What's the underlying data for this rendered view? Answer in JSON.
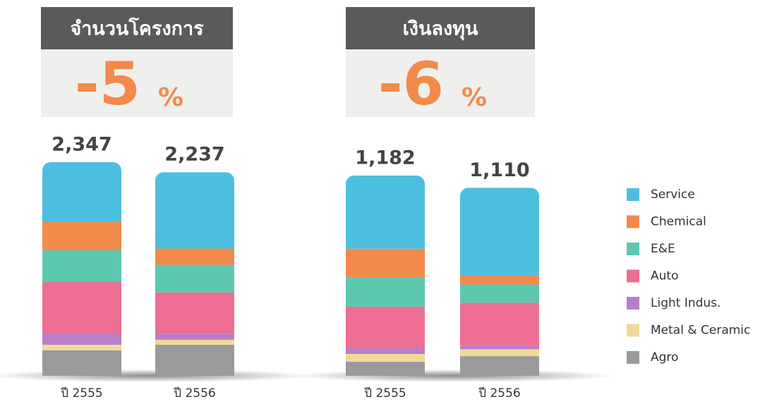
{
  "chart_data": [
    {
      "type": "bar",
      "stacked": true,
      "title": "จำนวนโครงการ",
      "change": "-5",
      "change_unit": "%",
      "categories": [
        "ปี 2555",
        "ปี 2556"
      ],
      "totals": [
        2347,
        2237
      ],
      "total_labels": [
        "2,347",
        "2,237"
      ],
      "series": [
        {
          "name": "Agro",
          "color": "#9a9a9a",
          "values": [
            279,
            342
          ]
        },
        {
          "name": "Metal & Ceramic",
          "color": "#f2d89a",
          "values": [
            62,
            54
          ]
        },
        {
          "name": "Light Indus.",
          "color": "#b77fc7",
          "values": [
            116,
            62
          ]
        },
        {
          "name": "Auto",
          "color": "#ee6e93",
          "values": [
            573,
            458
          ]
        },
        {
          "name": "E&E",
          "color": "#5cc8b0",
          "values": [
            349,
            303
          ]
        },
        {
          "name": "Chemical",
          "color": "#f28a4b",
          "values": [
            310,
            179
          ]
        },
        {
          "name": "Service",
          "color": "#4dbfde",
          "values": [
            658,
            839
          ]
        }
      ]
    },
    {
      "type": "bar",
      "stacked": true,
      "title": "เงินลงทุน",
      "change": "-6",
      "change_unit": "%",
      "categories": [
        "ปี 2555",
        "ปี 2556"
      ],
      "totals": [
        1182,
        1110
      ],
      "total_labels": [
        "1,182",
        "1,110"
      ],
      "series": [
        {
          "name": "Agro",
          "color": "#9a9a9a",
          "values": [
            83,
            116
          ]
        },
        {
          "name": "Metal & Ceramic",
          "color": "#f2d89a",
          "values": [
            46,
            41
          ]
        },
        {
          "name": "Light Indus.",
          "color": "#b77fc7",
          "values": [
            33,
            21
          ]
        },
        {
          "name": "Auto",
          "color": "#ee6e93",
          "values": [
            246,
            253
          ]
        },
        {
          "name": "E&E",
          "color": "#5cc8b0",
          "values": [
            171,
            108
          ]
        },
        {
          "name": "Chemical",
          "color": "#f28a4b",
          "values": [
            171,
            54
          ]
        },
        {
          "name": "Service",
          "color": "#4dbfde",
          "values": [
            432,
            517
          ]
        }
      ]
    }
  ]
}
